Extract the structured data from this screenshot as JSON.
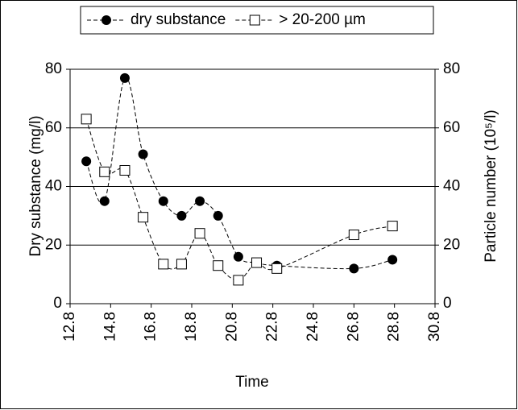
{
  "chart_data": {
    "type": "line",
    "x_label": "Time",
    "y_label": "Dry substance (mg/l)",
    "y2_label": "Particle number (10⁵/l)",
    "x": [
      13.6,
      14.5,
      15.5,
      16.4,
      17.4,
      18.3,
      19.2,
      20.1,
      21.1,
      22.0,
      23.0,
      26.8,
      28.7
    ],
    "series": [
      {
        "name": "dry substance",
        "color": "#000000",
        "marker": "circle",
        "values": [
          48.6,
          35,
          77,
          51,
          35,
          30,
          35,
          30,
          16,
          14,
          13,
          12,
          15
        ]
      },
      {
        "name": "> 20-200 µm",
        "color": "#000000",
        "marker": "square",
        "axis": "y2",
        "values": [
          63,
          45,
          45.5,
          29.5,
          13.5,
          13.5,
          24,
          13,
          8,
          14,
          12,
          23.5,
          26.5
        ]
      }
    ],
    "xlim": [
      12.8,
      30.8
    ],
    "xticks": [
      12.8,
      14.8,
      16.8,
      18.8,
      20.8,
      22.8,
      24.8,
      26.8,
      28.8,
      30.8
    ],
    "ylim": [
      0,
      80
    ],
    "yticks": [
      0,
      20,
      40,
      60,
      80
    ],
    "y2lim": [
      0,
      80
    ],
    "y2ticks": [
      0,
      20,
      40,
      60,
      80
    ],
    "grid": true,
    "legend": "top"
  }
}
